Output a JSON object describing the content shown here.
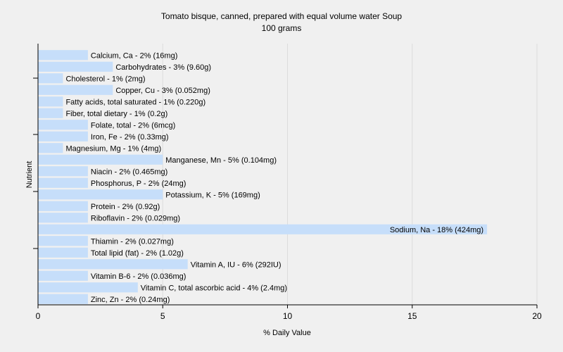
{
  "chart_data": {
    "type": "bar",
    "orientation": "horizontal",
    "title": "Tomato bisque, canned, prepared with equal volume water Soup",
    "subtitle": "100 grams",
    "xlabel": "% Daily Value",
    "ylabel": "Nutrient",
    "xlim": [
      0,
      20
    ],
    "xticks": [
      0,
      5,
      10,
      15,
      20
    ],
    "grid": true,
    "bar_color": "#c6defa",
    "categories": [
      "Calcium, Ca",
      "Carbohydrates",
      "Cholesterol",
      "Copper, Cu",
      "Fatty acids, total saturated",
      "Fiber, total dietary",
      "Folate, total",
      "Iron, Fe",
      "Magnesium, Mg",
      "Manganese, Mn",
      "Niacin",
      "Phosphorus, P",
      "Potassium, K",
      "Protein",
      "Riboflavin",
      "Sodium, Na",
      "Thiamin",
      "Total lipid (fat)",
      "Vitamin A, IU",
      "Vitamin B-6",
      "Vitamin C, total ascorbic acid",
      "Zinc, Zn"
    ],
    "values": [
      2,
      3,
      1,
      3,
      1,
      1,
      2,
      2,
      1,
      5,
      2,
      2,
      5,
      2,
      2,
      18,
      2,
      2,
      6,
      2,
      4,
      2
    ],
    "labels": [
      "Calcium, Ca - 2% (16mg)",
      "Carbohydrates - 3% (9.60g)",
      "Cholesterol - 1% (2mg)",
      "Copper, Cu - 3% (0.052mg)",
      "Fatty acids, total saturated - 1% (0.220g)",
      "Fiber, total dietary - 1% (0.2g)",
      "Folate, total - 2% (6mcg)",
      "Iron, Fe - 2% (0.33mg)",
      "Magnesium, Mg - 1% (4mg)",
      "Manganese, Mn - 5% (0.104mg)",
      "Niacin - 2% (0.465mg)",
      "Phosphorus, P - 2% (24mg)",
      "Potassium, K - 5% (169mg)",
      "Protein - 2% (0.92g)",
      "Riboflavin - 2% (0.029mg)",
      "Sodium, Na - 18% (424mg)",
      "Thiamin - 2% (0.027mg)",
      "Total lipid (fat) - 2% (1.02g)",
      "Vitamin A, IU - 6% (292IU)",
      "Vitamin B-6 - 2% (0.036mg)",
      "Vitamin C, total ascorbic acid - 4% (2.4mg)",
      "Zinc, Zn - 2% (0.24mg)"
    ]
  }
}
